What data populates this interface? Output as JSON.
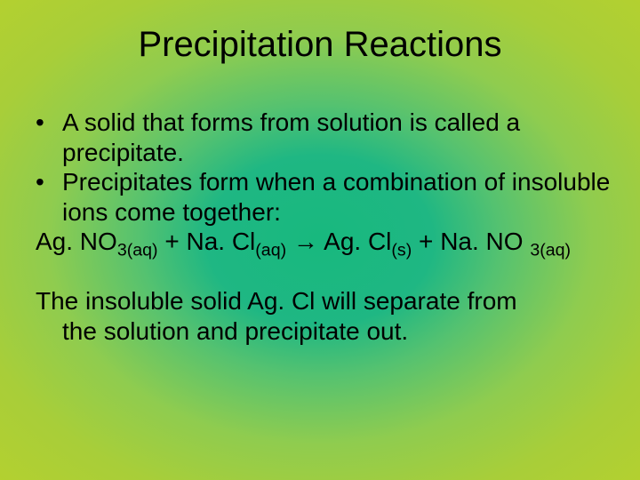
{
  "slide": {
    "title": "Precipitation Reactions",
    "bullets": [
      "A solid that forms from solution is called a precipitate.",
      "Precipitates form when a combination of insoluble ions come together:"
    ],
    "equation": {
      "r1": "Ag. NO",
      "r1_sub": "3(aq)",
      "plus1": " + ",
      "r2": "Na. Cl",
      "r2_sub": "(aq)",
      "arrow": " → ",
      "p1": "Ag. Cl",
      "p1_sub": "(s)",
      "plus2": " + ",
      "p2": "Na. NO ",
      "p2_sub": "3(aq)"
    },
    "closing_line1": "The insoluble solid Ag. Cl will separate from",
    "closing_line2": "the solution and precipitate out."
  },
  "style": {
    "title_fontsize": 40,
    "body_fontsize": 28,
    "text_color": "#000000",
    "bg_gradient_center": "#18b87e",
    "bg_gradient_edge": "#b3d030"
  }
}
